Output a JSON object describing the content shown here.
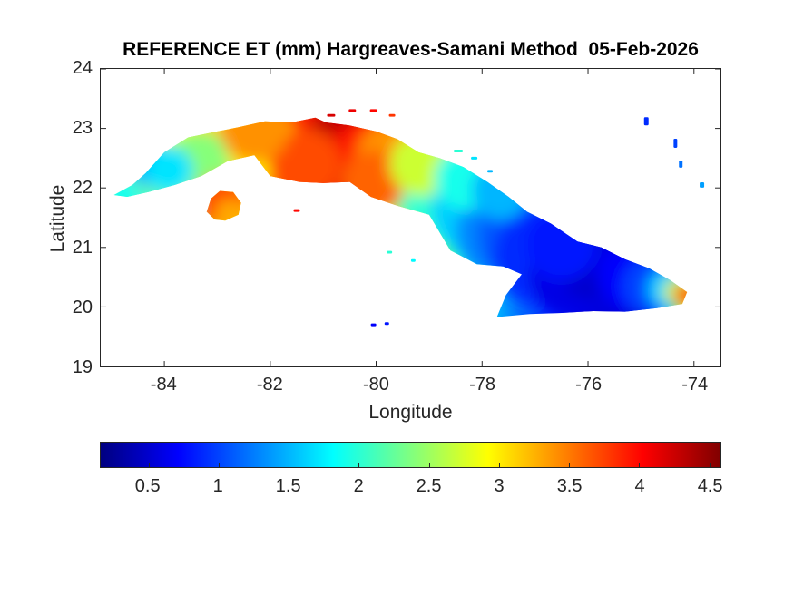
{
  "figure": {
    "background": "#ffffff",
    "axis_color": "#262626",
    "title_color": "#000000"
  },
  "chart_data": {
    "type": "heatmap",
    "title": "REFERENCE ET (mm) Hargreaves-Samani Method  05-Feb-2026",
    "xlabel": "Longitude",
    "ylabel": "Latitude",
    "region": "Cuba",
    "units": "mm",
    "method": "Hargreaves-Samani",
    "date": "05-Feb-2026",
    "xlim": [
      -85.2,
      -73.5
    ],
    "ylim": [
      19,
      24
    ],
    "xticks": [
      -84,
      -82,
      -80,
      -78,
      -76,
      -74
    ],
    "yticks": [
      19,
      20,
      21,
      22,
      23,
      24
    ],
    "grid": false,
    "legend": "none",
    "colorbar": {
      "orientation": "horizontal",
      "colormap": "jet",
      "range": [
        0.16,
        4.58
      ],
      "ticks": [
        0.5,
        1,
        1.5,
        2,
        2.5,
        3,
        3.5,
        4,
        4.5
      ]
    },
    "lon_trend": [
      {
        "lon": -85.2,
        "et": 2.0
      },
      {
        "lon": -84.6,
        "et": 2.1
      },
      {
        "lon": -84.0,
        "et": 2.0
      },
      {
        "lon": -83.4,
        "et": 2.5
      },
      {
        "lon": -82.8,
        "et": 2.9
      },
      {
        "lon": -82.2,
        "et": 3.2
      },
      {
        "lon": -81.6,
        "et": 3.7
      },
      {
        "lon": -81.0,
        "et": 4.1
      },
      {
        "lon": -80.6,
        "et": 4.3
      },
      {
        "lon": -80.0,
        "et": 3.8
      },
      {
        "lon": -79.4,
        "et": 3.1
      },
      {
        "lon": -78.9,
        "et": 2.5
      },
      {
        "lon": -78.4,
        "et": 2.0
      },
      {
        "lon": -77.9,
        "et": 1.6
      },
      {
        "lon": -77.3,
        "et": 1.2
      },
      {
        "lon": -76.7,
        "et": 0.9
      },
      {
        "lon": -76.1,
        "et": 0.6
      },
      {
        "lon": -75.4,
        "et": 0.6
      },
      {
        "lon": -74.9,
        "et": 0.9
      },
      {
        "lon": -74.5,
        "et": 1.6
      },
      {
        "lon": -74.2,
        "et": 2.8
      },
      {
        "lon": -73.9,
        "et": 3.8
      },
      {
        "lon": -73.5,
        "et": 4.0
      }
    ],
    "et_field_samples": [
      {
        "lon": -84.9,
        "lat": 21.95,
        "et": 2.0
      },
      {
        "lon": -84.55,
        "lat": 22.15,
        "et": 2.2
      },
      {
        "lon": -84.2,
        "lat": 22.05,
        "et": 1.9
      },
      {
        "lon": -84.25,
        "lat": 22.4,
        "et": 1.5,
        "r": 26
      },
      {
        "lon": -83.9,
        "lat": 22.3,
        "et": 1.7,
        "r": 26
      },
      {
        "lon": -83.85,
        "lat": 22.55,
        "et": 2.3
      },
      {
        "lon": -83.45,
        "lat": 22.75,
        "et": 2.6
      },
      {
        "lon": -83.35,
        "lat": 22.35,
        "et": 2.4,
        "r": 40
      },
      {
        "lon": -83.0,
        "lat": 22.85,
        "et": 2.9
      },
      {
        "lon": -82.6,
        "lat": 22.9,
        "et": 3.1
      },
      {
        "lon": -82.3,
        "lat": 23.0,
        "et": 3.4,
        "r": 38
      },
      {
        "lon": -82.15,
        "lat": 22.7,
        "et": 3.0,
        "r": 40
      },
      {
        "lon": -81.8,
        "lat": 22.75,
        "et": 3.6
      },
      {
        "lon": -81.4,
        "lat": 22.9,
        "et": 3.9,
        "r": 45
      },
      {
        "lon": -81.35,
        "lat": 22.4,
        "et": 3.7,
        "r": 40
      },
      {
        "lon": -81.0,
        "lat": 22.7,
        "et": 4.1
      },
      {
        "lon": -80.8,
        "lat": 22.45,
        "et": 4.35,
        "r": 48
      },
      {
        "lon": -80.55,
        "lat": 22.8,
        "et": 4.3,
        "r": 45
      },
      {
        "lon": -80.3,
        "lat": 22.4,
        "et": 4.1,
        "r": 45
      },
      {
        "lon": -80.0,
        "lat": 22.65,
        "et": 3.9,
        "r": 40
      },
      {
        "lon": -80.05,
        "lat": 22.1,
        "et": 3.6,
        "r": 35
      },
      {
        "lon": -79.7,
        "lat": 22.5,
        "et": 3.4,
        "r": 40
      },
      {
        "lon": -79.45,
        "lat": 22.1,
        "et": 3.0
      },
      {
        "lon": -79.15,
        "lat": 22.4,
        "et": 2.7,
        "r": 35
      },
      {
        "lon": -78.9,
        "lat": 22.0,
        "et": 2.3
      },
      {
        "lon": -78.55,
        "lat": 21.85,
        "et": 2.0
      },
      {
        "lon": -78.3,
        "lat": 22.15,
        "et": 1.9,
        "r": 35
      },
      {
        "lon": -78.0,
        "lat": 21.65,
        "et": 1.6
      },
      {
        "lon": -77.65,
        "lat": 21.95,
        "et": 1.5,
        "r": 32
      },
      {
        "lon": -77.55,
        "lat": 21.25,
        "et": 1.3
      },
      {
        "lon": -77.15,
        "lat": 21.2,
        "et": 1.1
      },
      {
        "lon": -76.85,
        "lat": 20.85,
        "et": 0.9
      },
      {
        "lon": -76.5,
        "lat": 21.05,
        "et": 0.8,
        "r": 40
      },
      {
        "lon": -76.3,
        "lat": 20.55,
        "et": 0.6,
        "r": 48
      },
      {
        "lon": -75.9,
        "lat": 20.75,
        "et": 0.5,
        "r": 42
      },
      {
        "lon": -75.45,
        "lat": 20.35,
        "et": 0.55
      },
      {
        "lon": -75.15,
        "lat": 20.55,
        "et": 0.7,
        "r": 40
      },
      {
        "lon": -74.8,
        "lat": 20.35,
        "et": 1.0,
        "r": 32
      },
      {
        "lon": -74.5,
        "lat": 20.3,
        "et": 1.6,
        "r": 22
      },
      {
        "lon": -74.3,
        "lat": 20.25,
        "et": 2.7,
        "r": 16
      },
      {
        "lon": -74.16,
        "lat": 20.2,
        "et": 3.7,
        "r": 13
      },
      {
        "lon": -82.9,
        "lat": 21.75,
        "et": 3.7,
        "r": 30
      },
      {
        "lon": -82.75,
        "lat": 21.55,
        "et": 3.3,
        "r": 18
      }
    ],
    "islets": [
      {
        "lon": -80.85,
        "lat": 23.22,
        "et": 4.2,
        "w": 9,
        "h": 3
      },
      {
        "lon": -80.45,
        "lat": 23.3,
        "et": 4.1,
        "w": 8,
        "h": 3
      },
      {
        "lon": -80.05,
        "lat": 23.3,
        "et": 4.0,
        "w": 8,
        "h": 3
      },
      {
        "lon": -79.7,
        "lat": 23.22,
        "et": 3.8,
        "w": 7,
        "h": 3
      },
      {
        "lon": -78.45,
        "lat": 22.62,
        "et": 2.0,
        "w": 10,
        "h": 3
      },
      {
        "lon": -78.15,
        "lat": 22.5,
        "et": 1.7,
        "w": 7,
        "h": 3
      },
      {
        "lon": -77.85,
        "lat": 22.28,
        "et": 1.5,
        "w": 6,
        "h": 3
      },
      {
        "lon": -81.5,
        "lat": 21.62,
        "et": 4.0,
        "w": 7,
        "h": 3
      },
      {
        "lon": -79.75,
        "lat": 20.92,
        "et": 2.0,
        "w": 6,
        "h": 3
      },
      {
        "lon": -79.3,
        "lat": 20.78,
        "et": 1.8,
        "w": 5,
        "h": 3
      },
      {
        "lon": -80.05,
        "lat": 19.7,
        "et": 0.7,
        "w": 6,
        "h": 3
      },
      {
        "lon": -79.8,
        "lat": 19.72,
        "et": 0.8,
        "w": 5,
        "h": 3
      },
      {
        "lon": -74.9,
        "lat": 23.12,
        "et": 0.9,
        "w": 5,
        "h": 9
      },
      {
        "lon": -74.35,
        "lat": 22.75,
        "et": 1.0,
        "w": 4,
        "h": 10
      },
      {
        "lon": -74.25,
        "lat": 22.4,
        "et": 1.2,
        "w": 4,
        "h": 8
      },
      {
        "lon": -73.85,
        "lat": 22.05,
        "et": 1.4,
        "w": 5,
        "h": 6
      }
    ],
    "coastline": {
      "cuba_main": [
        [
          -84.95,
          21.88
        ],
        [
          -84.6,
          22.05
        ],
        [
          -84.35,
          22.25
        ],
        [
          -84.0,
          22.6
        ],
        [
          -83.55,
          22.85
        ],
        [
          -83.0,
          22.95
        ],
        [
          -82.6,
          23.02
        ],
        [
          -82.1,
          23.12
        ],
        [
          -81.6,
          23.1
        ],
        [
          -81.15,
          23.18
        ],
        [
          -80.95,
          23.1
        ],
        [
          -80.5,
          23.05
        ],
        [
          -80.0,
          22.95
        ],
        [
          -79.6,
          22.82
        ],
        [
          -79.2,
          22.6
        ],
        [
          -78.8,
          22.5
        ],
        [
          -78.35,
          22.35
        ],
        [
          -77.9,
          22.1
        ],
        [
          -77.5,
          21.85
        ],
        [
          -77.15,
          21.6
        ],
        [
          -76.7,
          21.4
        ],
        [
          -76.2,
          21.1
        ],
        [
          -75.75,
          21.0
        ],
        [
          -75.3,
          20.8
        ],
        [
          -74.85,
          20.65
        ],
        [
          -74.45,
          20.45
        ],
        [
          -74.13,
          20.25
        ],
        [
          -74.22,
          20.05
        ],
        [
          -74.7,
          19.98
        ],
        [
          -75.3,
          19.92
        ],
        [
          -75.9,
          19.93
        ],
        [
          -76.5,
          19.9
        ],
        [
          -77.1,
          19.88
        ],
        [
          -77.72,
          19.83
        ],
        [
          -77.55,
          20.2
        ],
        [
          -77.25,
          20.55
        ],
        [
          -77.6,
          20.68
        ],
        [
          -78.1,
          20.72
        ],
        [
          -78.6,
          20.95
        ],
        [
          -79.0,
          21.55
        ],
        [
          -79.6,
          21.7
        ],
        [
          -80.1,
          21.85
        ],
        [
          -80.5,
          22.1
        ],
        [
          -81.0,
          22.08
        ],
        [
          -81.45,
          22.1
        ],
        [
          -82.0,
          22.2
        ],
        [
          -82.3,
          22.55
        ],
        [
          -82.8,
          22.45
        ],
        [
          -83.3,
          22.2
        ],
        [
          -83.8,
          22.05
        ],
        [
          -84.3,
          21.93
        ],
        [
          -84.7,
          21.85
        ]
      ],
      "isla_de_la_juventud": [
        [
          -83.2,
          21.6
        ],
        [
          -83.12,
          21.82
        ],
        [
          -82.95,
          21.95
        ],
        [
          -82.7,
          21.93
        ],
        [
          -82.55,
          21.75
        ],
        [
          -82.6,
          21.55
        ],
        [
          -82.85,
          21.45
        ],
        [
          -83.05,
          21.47
        ]
      ]
    }
  }
}
